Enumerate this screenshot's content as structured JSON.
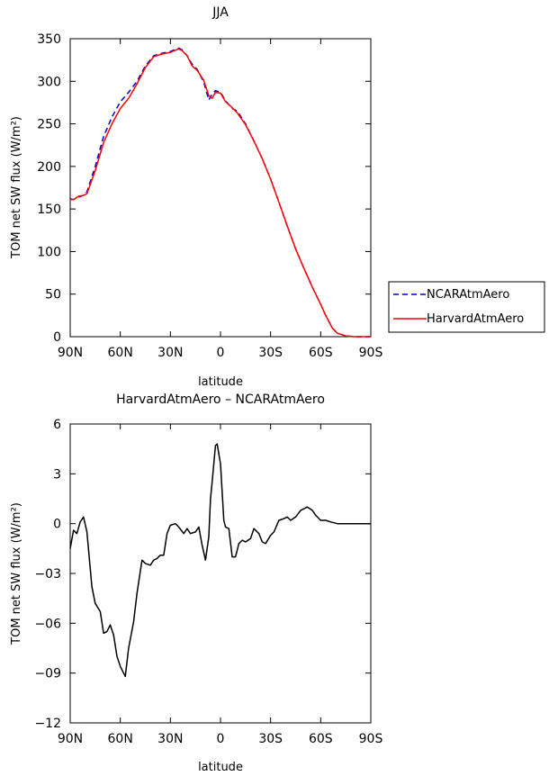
{
  "chart_data": [
    {
      "type": "line",
      "title": "JJA",
      "xlabel": "latitude",
      "ylabel": "TOM net SW flux (W/m²)",
      "ylim": [
        0,
        350
      ],
      "yticks": [
        0,
        50,
        100,
        150,
        200,
        250,
        300,
        350
      ],
      "xlim": [
        90,
        -90
      ],
      "xticks": [
        90,
        60,
        30,
        0,
        -30,
        -60,
        -90
      ],
      "xtick_labels": [
        "90N",
        "60N",
        "30N",
        "0",
        "30S",
        "60S",
        "90S"
      ],
      "grid": false,
      "legend_position": "right",
      "series": [
        {
          "name": "NCARAtmAero",
          "color": "#0000cc",
          "dash": "dashed",
          "x": [
            90,
            88,
            85,
            82,
            80,
            75,
            70,
            65,
            60,
            55,
            50,
            45,
            40,
            35,
            30,
            25,
            23,
            20,
            17,
            14,
            10,
            7,
            5,
            3,
            0,
            -3,
            -7,
            -10,
            -15,
            -20,
            -25,
            -30,
            -35,
            -40,
            -45,
            -50,
            -55,
            -60,
            -63,
            -67,
            -70,
            -75,
            -80,
            -85,
            -90
          ],
          "y": [
            162,
            161,
            164,
            166,
            170,
            200,
            235,
            258,
            276,
            287,
            300,
            318,
            330,
            333,
            335,
            339,
            337,
            330,
            320,
            314,
            299,
            278,
            285,
            289,
            287,
            277,
            268,
            265,
            250,
            230,
            209,
            185,
            158,
            130,
            103,
            80,
            58,
            38,
            25,
            10,
            4,
            1,
            0,
            0,
            0
          ]
        },
        {
          "name": "HarvardAtmAero",
          "color": "#ff0000",
          "dash": "solid",
          "x": [
            90,
            88,
            85,
            82,
            80,
            75,
            70,
            65,
            60,
            55,
            50,
            45,
            40,
            35,
            30,
            25,
            23,
            20,
            17,
            14,
            10,
            7,
            5,
            3,
            0,
            -3,
            -7,
            -10,
            -15,
            -20,
            -25,
            -30,
            -35,
            -40,
            -45,
            -50,
            -55,
            -60,
            -63,
            -67,
            -70,
            -75,
            -80,
            -85,
            -90
          ],
          "y": [
            161,
            161,
            165,
            166,
            168,
            195,
            228,
            250,
            268,
            280,
            297,
            316,
            329,
            332,
            334,
            338,
            336,
            330,
            318,
            313,
            301,
            283,
            280,
            287,
            286,
            276,
            269,
            263,
            249,
            230,
            209,
            185,
            158,
            130,
            103,
            80,
            58,
            38,
            25,
            10,
            4,
            1,
            0,
            0,
            0
          ]
        }
      ]
    },
    {
      "type": "line",
      "title": "HarvardAtmAero – NCARAtmAero",
      "xlabel": "latitude",
      "ylabel": "TOM net SW flux (W/m²)",
      "ylim": [
        -12,
        6
      ],
      "yticks": [
        6,
        3,
        0,
        -3,
        -6,
        -9,
        -12
      ],
      "ytick_labels": [
        "6",
        "3",
        "0",
        "−03",
        "−06",
        "−09",
        "−12"
      ],
      "xlim": [
        90,
        -90
      ],
      "xticks": [
        90,
        60,
        30,
        0,
        -30,
        -60,
        -90
      ],
      "xtick_labels": [
        "90N",
        "60N",
        "30N",
        "0",
        "30S",
        "60S",
        "90S"
      ],
      "grid": false,
      "series": [
        {
          "color": "#000000",
          "dash": "solid",
          "x": [
            90,
            88,
            86,
            84,
            82,
            80,
            77,
            75,
            72,
            70,
            68,
            66,
            64,
            62,
            60,
            57,
            55,
            52,
            50,
            47,
            45,
            42,
            40,
            38,
            36,
            34,
            32,
            30,
            27,
            25,
            22,
            20,
            18,
            15,
            13,
            11,
            9,
            7,
            6,
            5,
            3,
            2,
            0,
            -2,
            -3,
            -5,
            -7,
            -9,
            -11,
            -13,
            -15,
            -18,
            -20,
            -23,
            -25,
            -27,
            -30,
            -32,
            -35,
            -38,
            -40,
            -42,
            -45,
            -48,
            -50,
            -52,
            -55,
            -57,
            -60,
            -63,
            -66,
            -70,
            -75,
            -80,
            -85,
            -90
          ],
          "y": [
            -1.5,
            -0.4,
            -0.6,
            0.1,
            0.4,
            -0.5,
            -3.8,
            -4.8,
            -5.3,
            -6.6,
            -6.5,
            -6.1,
            -6.7,
            -8.0,
            -8.6,
            -9.2,
            -7.5,
            -5.9,
            -4.2,
            -2.2,
            -2.4,
            -2.5,
            -2.2,
            -2.1,
            -1.9,
            -1.9,
            -0.6,
            -0.1,
            0.0,
            -0.2,
            -0.6,
            -0.3,
            -0.6,
            -0.5,
            -0.2,
            -1.3,
            -2.2,
            -0.8,
            1.5,
            2.5,
            4.7,
            4.8,
            3.6,
            0.2,
            -0.2,
            -0.3,
            -2.0,
            -2.0,
            -1.2,
            -1.0,
            -1.1,
            -0.9,
            -0.3,
            -0.6,
            -1.1,
            -1.2,
            -0.7,
            -0.5,
            0.2,
            0.3,
            0.4,
            0.2,
            0.4,
            0.8,
            0.9,
            1.0,
            0.8,
            0.5,
            0.2,
            0.2,
            0.1,
            0.0,
            0.0,
            0.0,
            0.0,
            0.0
          ]
        }
      ]
    }
  ]
}
